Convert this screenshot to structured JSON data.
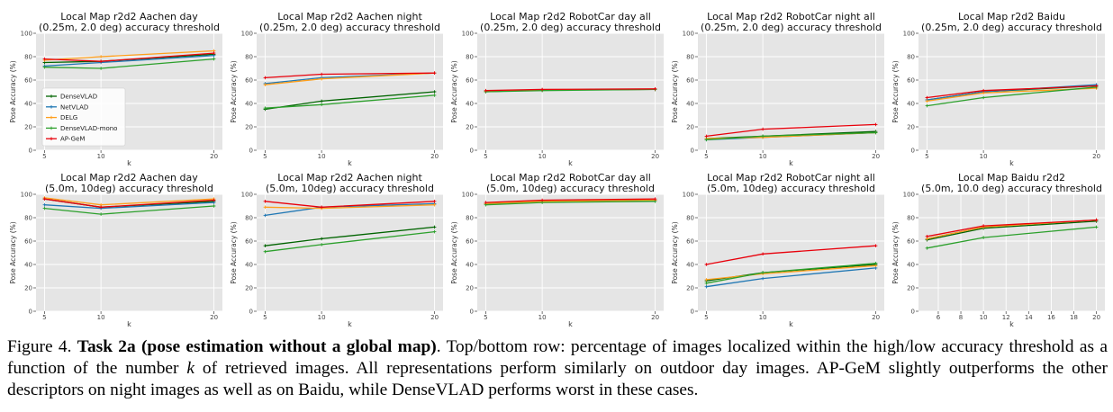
{
  "chart_data": [
    {
      "type": "line",
      "title_line1": "Local Map r2d2 Aachen day",
      "title_line2": "(0.25m, 2.0 deg) accuracy threshold",
      "xlabel": "k",
      "ylabel": "Pose Accuracy (%)",
      "x": [
        5,
        10,
        20
      ],
      "xlim": [
        4.25,
        20.75
      ],
      "ylim": [
        0,
        100
      ],
      "xticks": [
        5,
        10,
        20
      ],
      "yticks": [
        0,
        20,
        40,
        60,
        80,
        100
      ],
      "grid": true,
      "legend": "center-left",
      "series": [
        {
          "name": "DenseVLAD",
          "color": "#006400",
          "values": [
            75,
            76,
            82
          ]
        },
        {
          "name": "NetVLAD",
          "color": "#1f77b4",
          "values": [
            72,
            75,
            81
          ]
        },
        {
          "name": "DELG",
          "color": "#ff9f1c",
          "values": [
            77,
            80,
            85
          ]
        },
        {
          "name": "DenseVLAD-mono",
          "color": "#2ca02c",
          "values": [
            71,
            70,
            78
          ]
        },
        {
          "name": "AP-GeM",
          "color": "#e8000b",
          "values": [
            78,
            76,
            83
          ]
        }
      ]
    },
    {
      "type": "line",
      "title_line1": "Local Map r2d2 Aachen night",
      "title_line2": "(0.25m, 2.0 deg) accuracy threshold",
      "xlabel": "k",
      "ylabel": "Pose Accuracy (%)",
      "x": [
        5,
        10,
        20
      ],
      "xlim": [
        4.25,
        20.75
      ],
      "ylim": [
        0,
        100
      ],
      "xticks": [
        5,
        10,
        20
      ],
      "yticks": [
        0,
        20,
        40,
        60,
        80,
        100
      ],
      "grid": true,
      "series": [
        {
          "name": "DenseVLAD",
          "color": "#006400",
          "values": [
            35,
            42,
            50
          ]
        },
        {
          "name": "NetVLAD",
          "color": "#1f77b4",
          "values": [
            57,
            62,
            66
          ]
        },
        {
          "name": "DELG",
          "color": "#ff9f1c",
          "values": [
            56,
            61,
            66
          ]
        },
        {
          "name": "DenseVLAD-mono",
          "color": "#2ca02c",
          "values": [
            36,
            39,
            47
          ]
        },
        {
          "name": "AP-GeM",
          "color": "#e8000b",
          "values": [
            62,
            65,
            66
          ]
        }
      ]
    },
    {
      "type": "line",
      "title_line1": "Local Map r2d2 RobotCar day all",
      "title_line2": "(0.25m, 2.0 deg) accuracy threshold",
      "xlabel": "k",
      "ylabel": "Pose Accuracy (%)",
      "x": [
        5,
        10,
        20
      ],
      "xlim": [
        4.25,
        20.75
      ],
      "ylim": [
        0,
        100
      ],
      "xticks": [
        5,
        10,
        20
      ],
      "yticks": [
        0,
        20,
        40,
        60,
        80,
        100
      ],
      "grid": true,
      "series": [
        {
          "name": "DenseVLAD",
          "color": "#006400",
          "values": [
            50,
            51.5,
            52
          ]
        },
        {
          "name": "NetVLAD",
          "color": "#1f77b4",
          "values": [
            50.5,
            51.5,
            52
          ]
        },
        {
          "name": "DELG",
          "color": "#ff9f1c",
          "values": [
            50.5,
            51.5,
            52
          ]
        },
        {
          "name": "DenseVLAD-mono",
          "color": "#2ca02c",
          "values": [
            50,
            51,
            52
          ]
        },
        {
          "name": "AP-GeM",
          "color": "#e8000b",
          "values": [
            51,
            52,
            52.5
          ]
        }
      ]
    },
    {
      "type": "line",
      "title_line1": "Local Map r2d2 RobotCar night all",
      "title_line2": "(0.25m, 2.0 deg) accuracy threshold",
      "xlabel": "k",
      "ylabel": "Pose Accuracy (%)",
      "x": [
        5,
        10,
        20
      ],
      "xlim": [
        4.25,
        20.75
      ],
      "ylim": [
        0,
        100
      ],
      "xticks": [
        5,
        10,
        20
      ],
      "yticks": [
        0,
        20,
        40,
        60,
        80,
        100
      ],
      "grid": true,
      "series": [
        {
          "name": "DenseVLAD",
          "color": "#006400",
          "values": [
            10,
            12,
            16
          ]
        },
        {
          "name": "NetVLAD",
          "color": "#1f77b4",
          "values": [
            9,
            11,
            15
          ]
        },
        {
          "name": "DELG",
          "color": "#ff9f1c",
          "values": [
            10,
            11,
            15
          ]
        },
        {
          "name": "DenseVLAD-mono",
          "color": "#2ca02c",
          "values": [
            9,
            12,
            15
          ]
        },
        {
          "name": "AP-GeM",
          "color": "#e8000b",
          "values": [
            12,
            18,
            22
          ]
        }
      ]
    },
    {
      "type": "line",
      "title_line1": "Local Map r2d2 Baidu",
      "title_line2": "(0.25m, 2.0 deg) accuracy threshold",
      "xlabel": "k",
      "ylabel": "Pose Accuracy (%)",
      "x": [
        5,
        10,
        20
      ],
      "xlim": [
        4.25,
        20.75
      ],
      "ylim": [
        0,
        100
      ],
      "xticks": [
        5,
        10,
        20
      ],
      "yticks": [
        0,
        20,
        40,
        60,
        80,
        100
      ],
      "grid": true,
      "series": [
        {
          "name": "DenseVLAD",
          "color": "#006400",
          "values": [
            43,
            50,
            55
          ]
        },
        {
          "name": "NetVLAD",
          "color": "#1f77b4",
          "values": [
            43,
            50,
            56
          ]
        },
        {
          "name": "DELG",
          "color": "#ff9f1c",
          "values": [
            42,
            49,
            53
          ]
        },
        {
          "name": "DenseVLAD-mono",
          "color": "#2ca02c",
          "values": [
            38,
            45,
            54
          ]
        },
        {
          "name": "AP-GeM",
          "color": "#e8000b",
          "values": [
            45,
            51,
            55
          ]
        }
      ]
    },
    {
      "type": "line",
      "title_line1": "Local Map r2d2 Aachen day",
      "title_line2": "(5.0m, 10deg) accuracy threshold",
      "xlabel": "k",
      "ylabel": "Pose Accuracy (%)",
      "x": [
        5,
        10,
        20
      ],
      "xlim": [
        4.25,
        20.75
      ],
      "ylim": [
        0,
        100
      ],
      "xticks": [
        5,
        10,
        20
      ],
      "yticks": [
        0,
        20,
        40,
        60,
        80,
        100
      ],
      "grid": true,
      "series": [
        {
          "name": "DenseVLAD",
          "color": "#006400",
          "values": [
            96,
            89,
            94
          ]
        },
        {
          "name": "NetVLAD",
          "color": "#1f77b4",
          "values": [
            91,
            88,
            93
          ]
        },
        {
          "name": "DELG",
          "color": "#ff9f1c",
          "values": [
            97,
            91,
            96
          ]
        },
        {
          "name": "DenseVLAD-mono",
          "color": "#2ca02c",
          "values": [
            88,
            83,
            90
          ]
        },
        {
          "name": "AP-GeM",
          "color": "#e8000b",
          "values": [
            96,
            89,
            95
          ]
        }
      ]
    },
    {
      "type": "line",
      "title_line1": "Local Map r2d2 Aachen night",
      "title_line2": "(5.0m, 10deg) accuracy threshold",
      "xlabel": "k",
      "ylabel": "Pose Accuracy (%)",
      "x": [
        5,
        10,
        20
      ],
      "xlim": [
        4.25,
        20.75
      ],
      "ylim": [
        0,
        100
      ],
      "xticks": [
        5,
        10,
        20
      ],
      "yticks": [
        0,
        20,
        40,
        60,
        80,
        100
      ],
      "grid": true,
      "series": [
        {
          "name": "DenseVLAD",
          "color": "#006400",
          "values": [
            56,
            62,
            72
          ]
        },
        {
          "name": "NetVLAD",
          "color": "#1f77b4",
          "values": [
            82,
            89,
            92
          ]
        },
        {
          "name": "DELG",
          "color": "#ff9f1c",
          "values": [
            89,
            88,
            91
          ]
        },
        {
          "name": "DenseVLAD-mono",
          "color": "#2ca02c",
          "values": [
            51,
            57,
            68
          ]
        },
        {
          "name": "AP-GeM",
          "color": "#e8000b",
          "values": [
            94,
            89,
            94
          ]
        }
      ]
    },
    {
      "type": "line",
      "title_line1": "Local Map r2d2 RobotCar day all",
      "title_line2": "(5.0m, 10deg) accuracy threshold",
      "xlabel": "k",
      "ylabel": "Pose Accuracy (%)",
      "x": [
        5,
        10,
        20
      ],
      "xlim": [
        4.25,
        20.75
      ],
      "ylim": [
        0,
        100
      ],
      "xticks": [
        5,
        10,
        20
      ],
      "yticks": [
        0,
        20,
        40,
        60,
        80,
        100
      ],
      "grid": true,
      "series": [
        {
          "name": "DenseVLAD",
          "color": "#006400",
          "values": [
            92,
            94,
            95
          ]
        },
        {
          "name": "NetVLAD",
          "color": "#1f77b4",
          "values": [
            92,
            94,
            95
          ]
        },
        {
          "name": "DELG",
          "color": "#ff9f1c",
          "values": [
            92,
            94,
            95
          ]
        },
        {
          "name": "DenseVLAD-mono",
          "color": "#2ca02c",
          "values": [
            91,
            93,
            94
          ]
        },
        {
          "name": "AP-GeM",
          "color": "#e8000b",
          "values": [
            93,
            95,
            96
          ]
        }
      ]
    },
    {
      "type": "line",
      "title_line1": "Local Map r2d2 RobotCar night all",
      "title_line2": "(5.0m, 10deg) accuracy threshold",
      "xlabel": "k",
      "ylabel": "Pose Accuracy (%)",
      "x": [
        5,
        10,
        20
      ],
      "xlim": [
        4.25,
        20.75
      ],
      "ylim": [
        0,
        100
      ],
      "xticks": [
        5,
        10,
        20
      ],
      "yticks": [
        0,
        20,
        40,
        60,
        80,
        100
      ],
      "grid": true,
      "series": [
        {
          "name": "DenseVLAD",
          "color": "#006400",
          "values": [
            26,
            33,
            40
          ]
        },
        {
          "name": "NetVLAD",
          "color": "#1f77b4",
          "values": [
            21,
            28,
            37
          ]
        },
        {
          "name": "DELG",
          "color": "#ff9f1c",
          "values": [
            27,
            32,
            39
          ]
        },
        {
          "name": "DenseVLAD-mono",
          "color": "#2ca02c",
          "values": [
            24,
            33,
            41
          ]
        },
        {
          "name": "AP-GeM",
          "color": "#e8000b",
          "values": [
            40,
            49,
            56
          ]
        }
      ]
    },
    {
      "type": "line",
      "title_line1": "Local Map Baidu r2d2",
      "title_line2": "(5.0m, 10.0 deg) accuracy threshold",
      "xlabel": "k",
      "ylabel": "Pose Accuracy (%)",
      "x": [
        5,
        10,
        20
      ],
      "xlim": [
        4.25,
        20.75
      ],
      "ylim": [
        0,
        100
      ],
      "xticks": [
        6,
        8,
        10,
        12,
        14,
        16,
        18,
        20
      ],
      "yticks": [
        0,
        20,
        40,
        60,
        80,
        100
      ],
      "grid": true,
      "series": [
        {
          "name": "DenseVLAD",
          "color": "#006400",
          "values": [
            61,
            71,
            77
          ]
        },
        {
          "name": "NetVLAD",
          "color": "#1f77b4",
          "values": [
            62,
            72,
            78
          ]
        },
        {
          "name": "DELG",
          "color": "#ff9f1c",
          "values": [
            62,
            72,
            78
          ]
        },
        {
          "name": "DenseVLAD-mono",
          "color": "#2ca02c",
          "values": [
            54,
            63,
            72
          ]
        },
        {
          "name": "AP-GeM",
          "color": "#e8000b",
          "values": [
            64,
            73,
            78
          ]
        }
      ]
    }
  ],
  "caption": {
    "label": "Figure 4.",
    "bold": "Task 2a (pose estimation without a global map)",
    "text1": ". Top/bottom row: percentage of images localized within the high/low accuracy threshold as a function of the number ",
    "var": "k",
    "text2": " of retrieved images. All representations perform similarly on outdoor day images. AP-GeM slightly outperforms the other descriptors on night images as well as on Baidu, while DenseVLAD performs worst in these cases."
  }
}
